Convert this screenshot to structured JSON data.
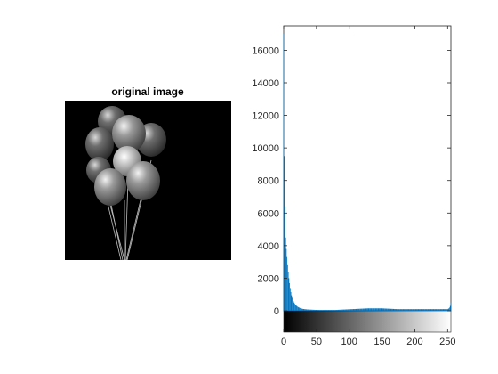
{
  "image_panel": {
    "title": "original image"
  },
  "chart_data": {
    "type": "histogram",
    "title": "",
    "xlabel": "",
    "ylabel": "",
    "xlim": [
      0,
      255
    ],
    "ylim": [
      0,
      17500
    ],
    "x_ticks": [
      0,
      50,
      100,
      150,
      200,
      250
    ],
    "y_ticks": [
      0,
      2000,
      4000,
      6000,
      8000,
      10000,
      12000,
      14000,
      16000
    ],
    "bar_color": "#0072BD",
    "colorbar": "grayscale 0 to 255 below x-axis",
    "counts": [
      17000,
      9500,
      6400,
      4500,
      3800,
      3300,
      2800,
      2400,
      2000,
      1700,
      1400,
      1150,
      950,
      800,
      680,
      580,
      500,
      430,
      380,
      330,
      290,
      260,
      230,
      210,
      190,
      170,
      155,
      140,
      130,
      120,
      110,
      105,
      100,
      95,
      90,
      85,
      82,
      80,
      78,
      75,
      72,
      70,
      68,
      66,
      64,
      62,
      60,
      58,
      56,
      55,
      54,
      53,
      52,
      51,
      50,
      50,
      50,
      50,
      50,
      50,
      50,
      50,
      50,
      50,
      50,
      50,
      50,
      50,
      50,
      50,
      50,
      50,
      50,
      50,
      50,
      50,
      50,
      50,
      50,
      50,
      52,
      54,
      56,
      58,
      60,
      62,
      64,
      66,
      68,
      70,
      72,
      74,
      76,
      78,
      80,
      82,
      84,
      86,
      88,
      90,
      92,
      94,
      96,
      98,
      100,
      102,
      104,
      106,
      108,
      110,
      112,
      114,
      116,
      118,
      120,
      122,
      124,
      126,
      128,
      130,
      132,
      134,
      136,
      138,
      140,
      142,
      144,
      146,
      148,
      150,
      150,
      150,
      150,
      150,
      150,
      150,
      150,
      150,
      150,
      150,
      150,
      150,
      150,
      150,
      150,
      150,
      150,
      150,
      150,
      150,
      148,
      146,
      144,
      142,
      140,
      138,
      136,
      134,
      132,
      130,
      128,
      126,
      124,
      122,
      120,
      118,
      116,
      114,
      112,
      110,
      108,
      106,
      104,
      102,
      100,
      100,
      100,
      100,
      100,
      100,
      100,
      100,
      100,
      100,
      100,
      100,
      100,
      100,
      100,
      100,
      100,
      100,
      100,
      100,
      100,
      100,
      100,
      100,
      100,
      100,
      100,
      100,
      100,
      100,
      100,
      100,
      100,
      100,
      100,
      100,
      100,
      100,
      100,
      100,
      100,
      100,
      100,
      100,
      100,
      100,
      100,
      100,
      100,
      100,
      100,
      100,
      100,
      100,
      100,
      100,
      100,
      100,
      100,
      100,
      100,
      100,
      100,
      100,
      100,
      100,
      100,
      100,
      100,
      100,
      100,
      100,
      100,
      100,
      100,
      100,
      100,
      120,
      150,
      200,
      300,
      500
    ]
  }
}
